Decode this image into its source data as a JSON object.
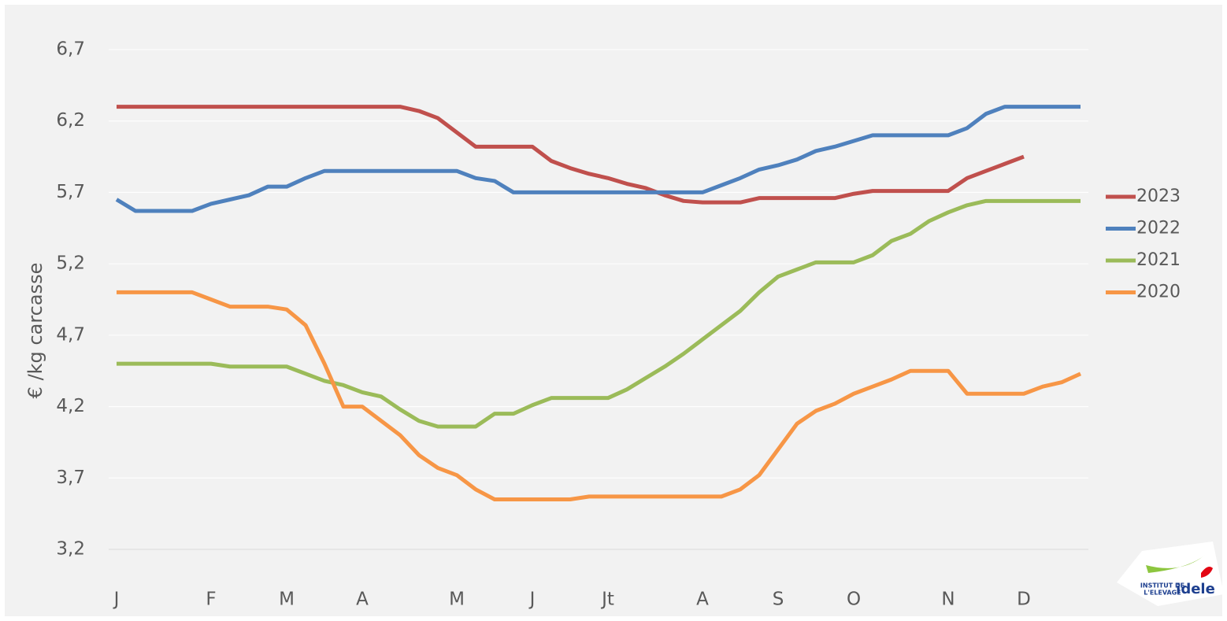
{
  "chart_data": {
    "type": "line",
    "y_label": "€ /kg carcasse",
    "categories": [
      "J",
      null,
      null,
      null,
      null,
      "F",
      null,
      null,
      null,
      "M",
      null,
      null,
      null,
      "A",
      null,
      null,
      null,
      null,
      "M",
      null,
      null,
      null,
      "J",
      null,
      null,
      null,
      "Jt",
      null,
      null,
      null,
      null,
      "A",
      null,
      null,
      null,
      "S",
      null,
      null,
      null,
      "O",
      null,
      null,
      null,
      null,
      "N",
      null,
      null,
      null,
      "D",
      null,
      null,
      null
    ],
    "series": [
      {
        "name": "2023",
        "color": "#c0504d",
        "values": [
          6.3,
          6.3,
          6.3,
          6.3,
          6.3,
          6.3,
          6.3,
          6.3,
          6.3,
          6.3,
          6.3,
          6.3,
          6.3,
          6.3,
          6.3,
          6.3,
          6.27,
          6.22,
          6.12,
          6.02,
          6.02,
          6.02,
          6.02,
          5.92,
          5.87,
          5.83,
          5.8,
          5.76,
          5.73,
          5.68,
          5.64,
          5.63,
          5.63,
          5.63,
          5.66,
          5.66,
          5.66,
          5.66,
          5.66,
          5.69,
          5.71,
          5.71,
          5.71,
          5.71,
          5.71,
          5.8,
          5.85,
          5.9,
          5.95,
          null,
          null,
          null
        ]
      },
      {
        "name": "2022",
        "color": "#4f81bd",
        "values": [
          5.65,
          5.57,
          5.57,
          5.57,
          5.57,
          5.62,
          5.65,
          5.68,
          5.74,
          5.74,
          5.8,
          5.85,
          5.85,
          5.85,
          5.85,
          5.85,
          5.85,
          5.85,
          5.85,
          5.8,
          5.78,
          5.7,
          5.7,
          5.7,
          5.7,
          5.7,
          5.7,
          5.7,
          5.7,
          5.7,
          5.7,
          5.7,
          5.75,
          5.8,
          5.86,
          5.89,
          5.93,
          5.99,
          6.02,
          6.06,
          6.1,
          6.1,
          6.1,
          6.1,
          6.1,
          6.15,
          6.25,
          6.3,
          6.3,
          6.3,
          6.3,
          6.3
        ]
      },
      {
        "name": "2021",
        "color": "#9bbb59",
        "values": [
          4.5,
          4.5,
          4.5,
          4.5,
          4.5,
          4.5,
          4.48,
          4.48,
          4.48,
          4.48,
          4.43,
          4.38,
          4.35,
          4.3,
          4.27,
          4.18,
          4.1,
          4.06,
          4.06,
          4.06,
          4.15,
          4.15,
          4.21,
          4.26,
          4.26,
          4.26,
          4.26,
          4.32,
          4.4,
          4.48,
          4.57,
          4.67,
          4.77,
          4.87,
          5.0,
          5.11,
          5.16,
          5.21,
          5.21,
          5.21,
          5.26,
          5.36,
          5.41,
          5.5,
          5.56,
          5.61,
          5.64,
          5.64,
          5.64,
          5.64,
          5.64,
          5.64
        ]
      },
      {
        "name": "2020",
        "color": "#f79646",
        "values": [
          5.0,
          5.0,
          5.0,
          5.0,
          5.0,
          4.95,
          4.9,
          4.9,
          4.9,
          4.88,
          4.77,
          4.5,
          4.2,
          4.2,
          4.1,
          4.0,
          3.86,
          3.77,
          3.72,
          3.62,
          3.55,
          3.55,
          3.55,
          3.55,
          3.55,
          3.57,
          3.57,
          3.57,
          3.57,
          3.57,
          3.57,
          3.57,
          3.57,
          3.62,
          3.72,
          3.9,
          4.08,
          4.17,
          4.22,
          4.29,
          4.34,
          4.39,
          4.45,
          4.45,
          4.45,
          4.29,
          4.29,
          4.29,
          4.29,
          4.34,
          4.37,
          4.43
        ]
      }
    ],
    "ylim": [
      3.2,
      6.7
    ],
    "yticks": [
      {
        "value": 3.2,
        "label": "3,2"
      },
      {
        "value": 3.7,
        "label": "3,7"
      },
      {
        "value": 4.2,
        "label": "4,2"
      },
      {
        "value": 4.7,
        "label": "4,7"
      },
      {
        "value": 5.2,
        "label": "5,2"
      },
      {
        "value": 5.7,
        "label": "5,7"
      },
      {
        "value": 6.2,
        "label": "6,2"
      },
      {
        "value": 6.7,
        "label": "6,7"
      }
    ],
    "grid": true,
    "legend": "right"
  },
  "logo": {
    "lines": [
      "INSTITUT DE",
      "L'ELEVAGE"
    ],
    "brand": "idele"
  }
}
